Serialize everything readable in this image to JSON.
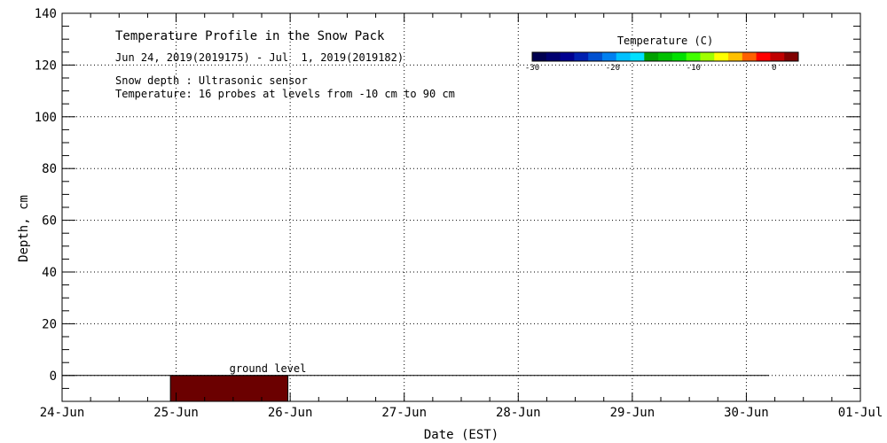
{
  "chart_data": {
    "type": "heatmap",
    "title": "Temperature Profile in the Snow Pack",
    "subtitle": "Jun 24, 2019(2019175) - Jul  1, 2019(2019182)",
    "notes": [
      "Snow depth : Ultrasonic sensor",
      "Temperature: 16 probes at levels from -10 cm to 90 cm"
    ],
    "xlabel": "Date (EST)",
    "ylabel": "Depth, cm",
    "x_ticks": [
      "24-Jun",
      "25-Jun",
      "26-Jun",
      "27-Jun",
      "28-Jun",
      "29-Jun",
      "30-Jun",
      "01-Jul"
    ],
    "xlim": [
      0,
      7
    ],
    "ylim": [
      -10,
      140
    ],
    "y_ticks": [
      0,
      20,
      40,
      60,
      80,
      100,
      120,
      140
    ],
    "grid": true,
    "ground_line": {
      "y": 0,
      "x_start": 0,
      "x_end": 6.2,
      "label": "ground level"
    },
    "series": [
      {
        "x_start": 0.95,
        "x_end": 1.98,
        "y_from": -10,
        "y_to": 0,
        "color": "#6b0000"
      }
    ],
    "colorbar": {
      "title": "Temperature (C)",
      "range": [
        -30,
        3
      ],
      "ticks": [
        -30,
        -20,
        -10,
        0
      ],
      "tick_labels": [
        "-30",
        "-20",
        "-10",
        "0"
      ],
      "colors": [
        "#000050",
        "#000070",
        "#000090",
        "#0020b0",
        "#0050d0",
        "#0080f0",
        "#00c0ff",
        "#00e0ff",
        "#00a000",
        "#00c000",
        "#00e000",
        "#40ff00",
        "#a0ff00",
        "#ffff00",
        "#ffc000",
        "#ff6000",
        "#ff0000",
        "#c00000",
        "#800000"
      ]
    }
  }
}
